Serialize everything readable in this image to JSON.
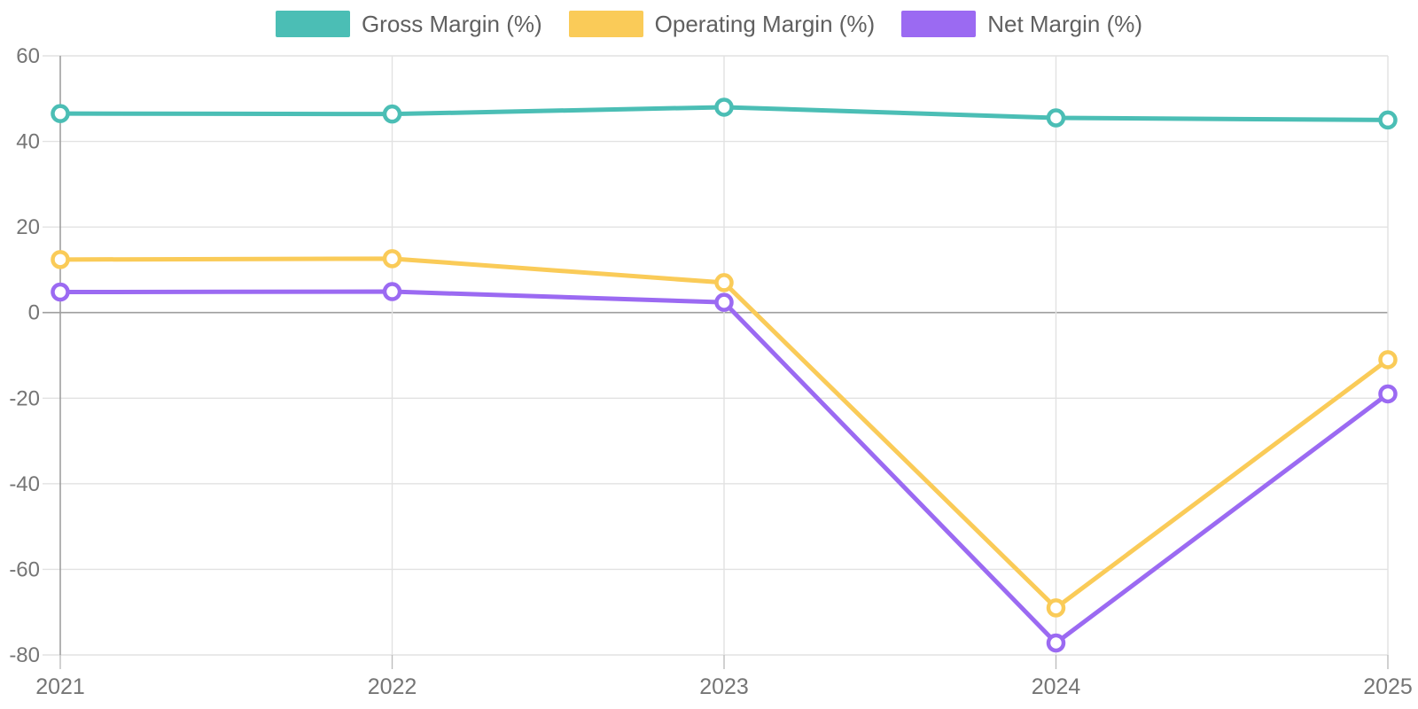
{
  "legend": {
    "items": [
      {
        "label": "Gross Margin (%)"
      },
      {
        "label": "Operating Margin (%)"
      },
      {
        "label": "Net Margin (%)"
      }
    ]
  },
  "chart_data": {
    "type": "line",
    "categories": [
      "2021",
      "2022",
      "2023",
      "2024",
      "2025"
    ],
    "series": [
      {
        "name": "Gross Margin (%)",
        "color": "#4bbeb5",
        "values": [
          46.5,
          46.4,
          48.0,
          45.5,
          45.0
        ]
      },
      {
        "name": "Operating Margin (%)",
        "color": "#facb58",
        "values": [
          12.4,
          12.6,
          7.0,
          -69.0,
          -11.0
        ]
      },
      {
        "name": "Net Margin (%)",
        "color": "#9b6af2",
        "values": [
          4.8,
          4.9,
          2.4,
          -77.2,
          -19.0
        ]
      }
    ],
    "title": "",
    "xlabel": "",
    "ylabel": "",
    "ylim": [
      -80,
      60
    ],
    "yticks": [
      60,
      40,
      20,
      0,
      -20,
      -40,
      -60,
      -80
    ],
    "grid": true,
    "legend_position": "top",
    "style": {
      "grid_color": "#e2e2e2",
      "axis_color": "#9e9e9e",
      "tick_color": "#bdbdbd",
      "tick_label_color": "#757575",
      "marker_fill": "#ffffff"
    }
  }
}
